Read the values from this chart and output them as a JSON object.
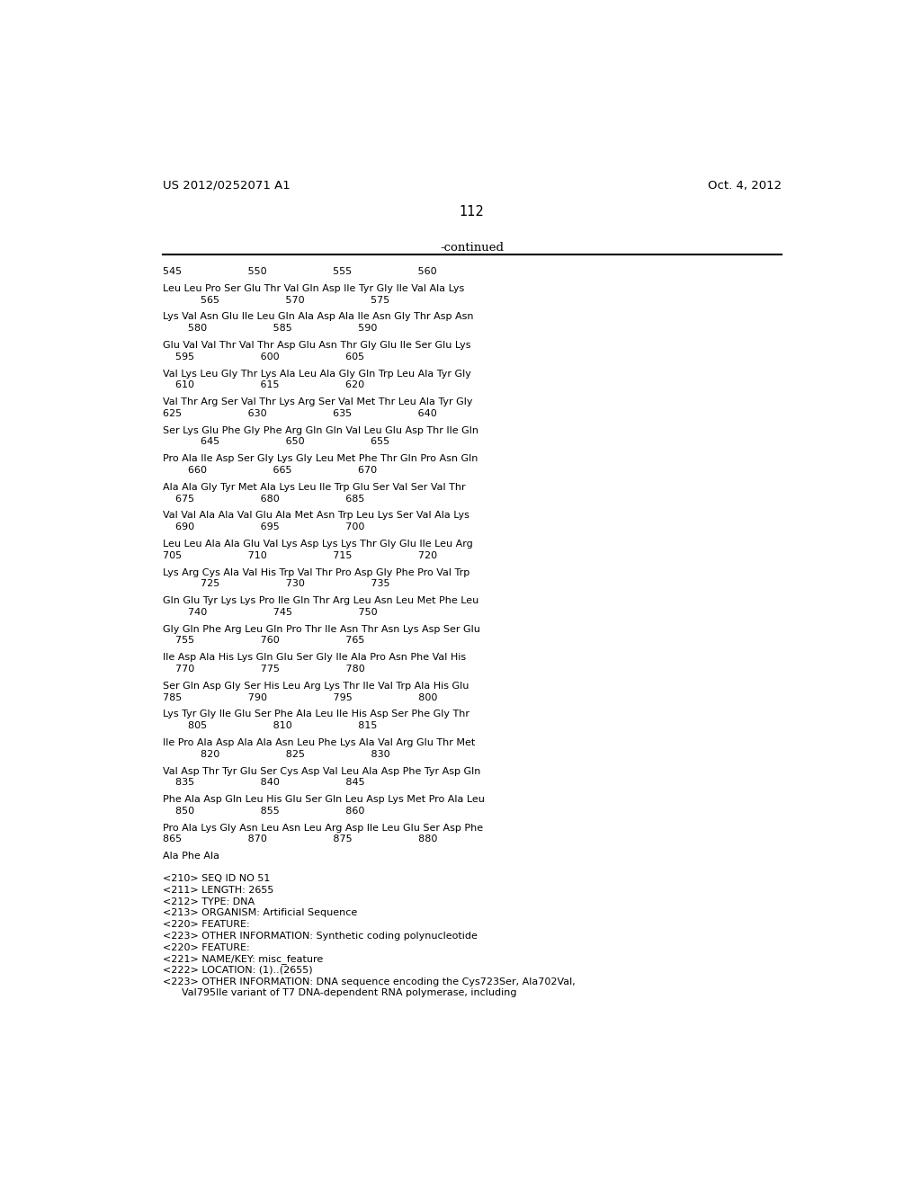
{
  "patent_left": "US 2012/0252071 A1",
  "patent_right": "Oct. 4, 2012",
  "page_number": "112",
  "continued_label": "-continued",
  "background_color": "#ffffff",
  "text_color": "#000000",
  "sequence_lines": [
    {
      "type": "numbers",
      "text": "545                     550                     555                     560"
    },
    {
      "type": "blank"
    },
    {
      "type": "sequence",
      "text": "Leu Leu Pro Ser Glu Thr Val Gln Asp Ile Tyr Gly Ile Val Ala Lys"
    },
    {
      "type": "numbers",
      "text": "            565                     570                     575"
    },
    {
      "type": "blank"
    },
    {
      "type": "sequence",
      "text": "Lys Val Asn Glu Ile Leu Gln Ala Asp Ala Ile Asn Gly Thr Asp Asn"
    },
    {
      "type": "numbers",
      "text": "        580                     585                     590"
    },
    {
      "type": "blank"
    },
    {
      "type": "sequence",
      "text": "Glu Val Val Thr Val Thr Asp Glu Asn Thr Gly Glu Ile Ser Glu Lys"
    },
    {
      "type": "numbers",
      "text": "    595                     600                     605"
    },
    {
      "type": "blank"
    },
    {
      "type": "sequence",
      "text": "Val Lys Leu Gly Thr Lys Ala Leu Ala Gly Gln Trp Leu Ala Tyr Gly"
    },
    {
      "type": "numbers",
      "text": "    610                     615                     620"
    },
    {
      "type": "blank"
    },
    {
      "type": "sequence",
      "text": "Val Thr Arg Ser Val Thr Lys Arg Ser Val Met Thr Leu Ala Tyr Gly"
    },
    {
      "type": "numbers",
      "text": "625                     630                     635                     640"
    },
    {
      "type": "blank"
    },
    {
      "type": "sequence",
      "text": "Ser Lys Glu Phe Gly Phe Arg Gln Gln Val Leu Glu Asp Thr Ile Gln"
    },
    {
      "type": "numbers",
      "text": "            645                     650                     655"
    },
    {
      "type": "blank"
    },
    {
      "type": "sequence",
      "text": "Pro Ala Ile Asp Ser Gly Lys Gly Leu Met Phe Thr Gln Pro Asn Gln"
    },
    {
      "type": "numbers",
      "text": "        660                     665                     670"
    },
    {
      "type": "blank"
    },
    {
      "type": "sequence",
      "text": "Ala Ala Gly Tyr Met Ala Lys Leu Ile Trp Glu Ser Val Ser Val Thr"
    },
    {
      "type": "numbers",
      "text": "    675                     680                     685"
    },
    {
      "type": "blank"
    },
    {
      "type": "sequence",
      "text": "Val Val Ala Ala Val Glu Ala Met Asn Trp Leu Lys Ser Val Ala Lys"
    },
    {
      "type": "numbers",
      "text": "    690                     695                     700"
    },
    {
      "type": "blank"
    },
    {
      "type": "sequence",
      "text": "Leu Leu Ala Ala Glu Val Lys Asp Lys Lys Thr Gly Glu Ile Leu Arg"
    },
    {
      "type": "numbers",
      "text": "705                     710                     715                     720"
    },
    {
      "type": "blank"
    },
    {
      "type": "sequence",
      "text": "Lys Arg Cys Ala Val His Trp Val Thr Pro Asp Gly Phe Pro Val Trp"
    },
    {
      "type": "numbers",
      "text": "            725                     730                     735"
    },
    {
      "type": "blank"
    },
    {
      "type": "sequence",
      "text": "Gln Glu Tyr Lys Lys Pro Ile Gln Thr Arg Leu Asn Leu Met Phe Leu"
    },
    {
      "type": "numbers",
      "text": "        740                     745                     750"
    },
    {
      "type": "blank"
    },
    {
      "type": "sequence",
      "text": "Gly Gln Phe Arg Leu Gln Pro Thr Ile Asn Thr Asn Lys Asp Ser Glu"
    },
    {
      "type": "numbers",
      "text": "    755                     760                     765"
    },
    {
      "type": "blank"
    },
    {
      "type": "sequence",
      "text": "Ile Asp Ala His Lys Gln Glu Ser Gly Ile Ala Pro Asn Phe Val His"
    },
    {
      "type": "numbers",
      "text": "    770                     775                     780"
    },
    {
      "type": "blank"
    },
    {
      "type": "sequence",
      "text": "Ser Gln Asp Gly Ser His Leu Arg Lys Thr Ile Val Trp Ala His Glu"
    },
    {
      "type": "numbers",
      "text": "785                     790                     795                     800"
    },
    {
      "type": "blank"
    },
    {
      "type": "sequence",
      "text": "Lys Tyr Gly Ile Glu Ser Phe Ala Leu Ile His Asp Ser Phe Gly Thr"
    },
    {
      "type": "numbers",
      "text": "        805                     810                     815"
    },
    {
      "type": "blank"
    },
    {
      "type": "sequence",
      "text": "Ile Pro Ala Asp Ala Ala Asn Leu Phe Lys Ala Val Arg Glu Thr Met"
    },
    {
      "type": "numbers",
      "text": "            820                     825                     830"
    },
    {
      "type": "blank"
    },
    {
      "type": "sequence",
      "text": "Val Asp Thr Tyr Glu Ser Cys Asp Val Leu Ala Asp Phe Tyr Asp Gln"
    },
    {
      "type": "numbers",
      "text": "    835                     840                     845"
    },
    {
      "type": "blank"
    },
    {
      "type": "sequence",
      "text": "Phe Ala Asp Gln Leu His Glu Ser Gln Leu Asp Lys Met Pro Ala Leu"
    },
    {
      "type": "numbers",
      "text": "    850                     855                     860"
    },
    {
      "type": "blank"
    },
    {
      "type": "sequence",
      "text": "Pro Ala Lys Gly Asn Leu Asn Leu Arg Asp Ile Leu Glu Ser Asp Phe"
    },
    {
      "type": "numbers",
      "text": "865                     870                     875                     880"
    },
    {
      "type": "blank"
    },
    {
      "type": "sequence",
      "text": "Ala Phe Ala"
    },
    {
      "type": "blank"
    },
    {
      "type": "blank"
    },
    {
      "type": "feature",
      "text": "<210> SEQ ID NO 51"
    },
    {
      "type": "feature",
      "text": "<211> LENGTH: 2655"
    },
    {
      "type": "feature",
      "text": "<212> TYPE: DNA"
    },
    {
      "type": "feature",
      "text": "<213> ORGANISM: Artificial Sequence"
    },
    {
      "type": "feature",
      "text": "<220> FEATURE:"
    },
    {
      "type": "feature",
      "text": "<223> OTHER INFORMATION: Synthetic coding polynucleotide"
    },
    {
      "type": "feature",
      "text": "<220> FEATURE:"
    },
    {
      "type": "feature",
      "text": "<221> NAME/KEY: misc_feature"
    },
    {
      "type": "feature",
      "text": "<222> LOCATION: (1)..(2655)"
    },
    {
      "type": "feature",
      "text": "<223> OTHER INFORMATION: DNA sequence encoding the Cys723Ser, Ala702Val,"
    },
    {
      "type": "feature",
      "text": "      Val795Ile variant of T7 DNA-dependent RNA polymerase, including"
    }
  ]
}
